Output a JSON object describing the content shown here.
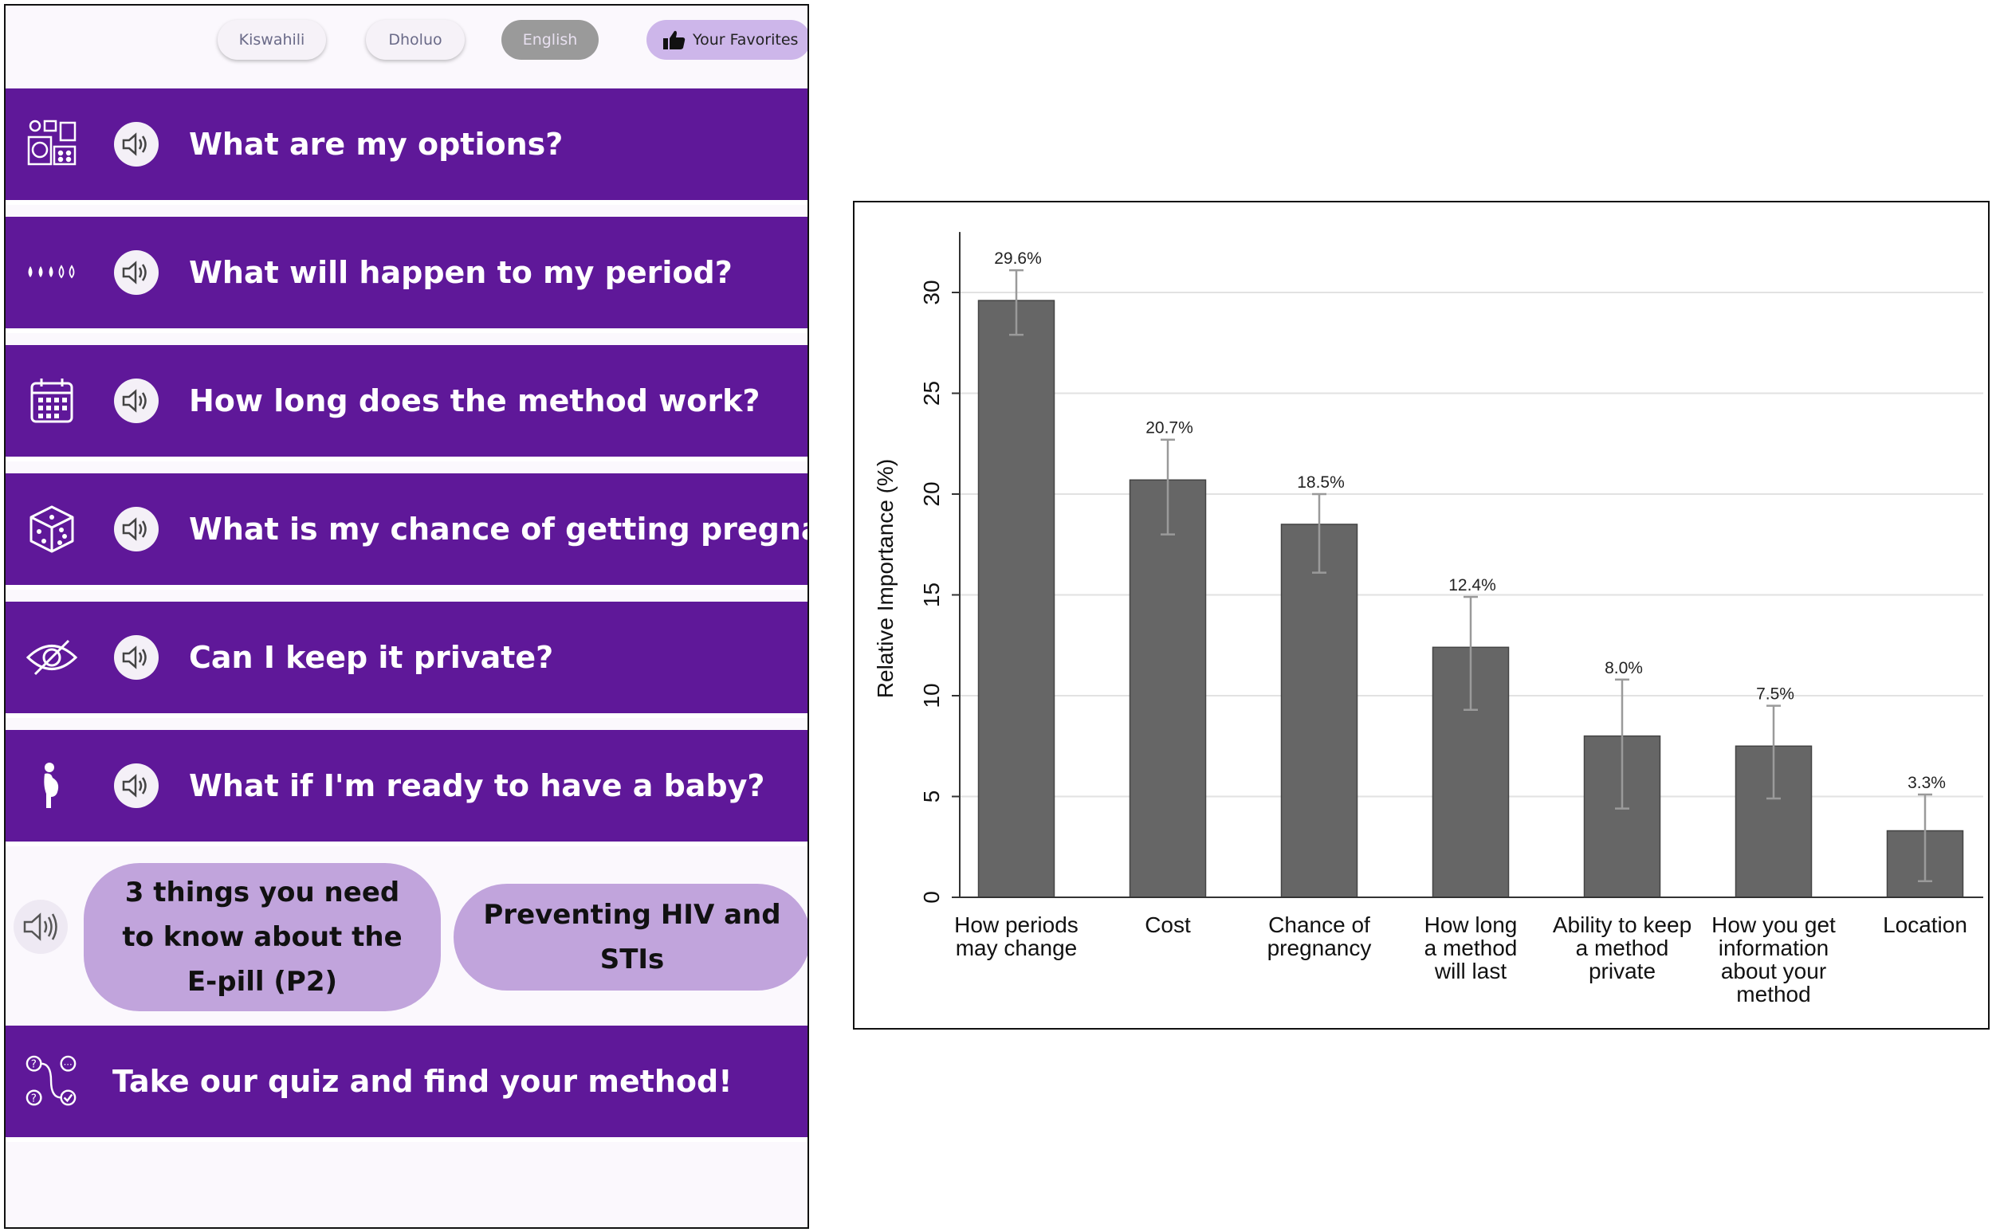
{
  "languages": [
    {
      "label": "Kiswahili",
      "active": false
    },
    {
      "label": "Dholuo",
      "active": false
    },
    {
      "label": "English",
      "active": true
    }
  ],
  "favorites": {
    "label": "Your Favorites",
    "icon": "thumbs-up-icon"
  },
  "colors": {
    "primary": "#5f1899",
    "card": "#c1a4dc",
    "bar": "#666666"
  },
  "menu": [
    {
      "label": "What are my options?",
      "icon": "options-collage-icon"
    },
    {
      "label": "What will happen to my period?",
      "icon": "droplets-icon"
    },
    {
      "label": "How long does the method work?",
      "icon": "calendar-icon"
    },
    {
      "label": "What is my chance of getting pregnant?",
      "icon": "dice-icon"
    },
    {
      "label": "Can I keep it private?",
      "icon": "eye-slash-icon"
    },
    {
      "label": "What if I'm ready to have a baby?",
      "icon": "pregnant-person-icon"
    }
  ],
  "cards": [
    {
      "lines": [
        "3 things you need",
        "to know about the",
        "E-pill (P2)"
      ]
    },
    {
      "lines": [
        "Preventing HIV and",
        "STIs"
      ]
    }
  ],
  "quiz": {
    "label": "Take our quiz and find your method!",
    "icon": "quiz-flow-icon"
  },
  "chart_data": {
    "type": "bar",
    "title": "",
    "xlabel": "",
    "ylabel": "Relative Importance (%)",
    "ylim": [
      0,
      33
    ],
    "yticks": [
      0,
      5,
      10,
      15,
      20,
      25,
      30
    ],
    "grid": true,
    "categories": [
      [
        "How periods",
        "may change"
      ],
      [
        "Cost"
      ],
      [
        "Chance of",
        "pregnancy"
      ],
      [
        "How long",
        "a method",
        "will last"
      ],
      [
        "Ability to keep",
        "a method",
        "private"
      ],
      [
        "How you get",
        "information",
        "about your",
        "method"
      ],
      [
        "Location"
      ]
    ],
    "values": [
      29.6,
      20.7,
      18.5,
      12.4,
      8.0,
      7.5,
      3.3
    ],
    "labels": [
      "29.6%",
      "20.7%",
      "18.5%",
      "12.4%",
      "8.0%",
      "7.5%",
      "3.3%"
    ],
    "error_low": [
      27.9,
      18.0,
      16.1,
      9.3,
      4.4,
      4.9,
      0.8
    ],
    "error_high": [
      31.1,
      22.7,
      20.0,
      14.9,
      10.8,
      9.5,
      5.1
    ]
  }
}
